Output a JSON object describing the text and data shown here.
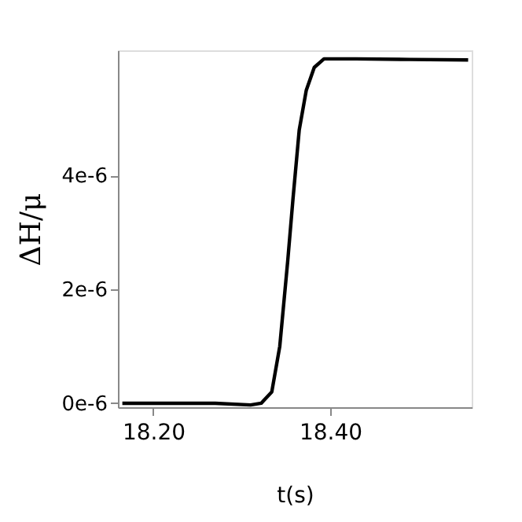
{
  "chart_data": {
    "type": "line",
    "xlabel": "t(s)",
    "ylabel": "ΔH/μ",
    "x": [
      18.165,
      18.22,
      18.27,
      18.31,
      18.322,
      18.334,
      18.343,
      18.352,
      18.358,
      18.365,
      18.373,
      18.382,
      18.393,
      18.429,
      18.49,
      18.556
    ],
    "series": [
      {
        "color": "#000000",
        "values": [
          0,
          0,
          0,
          -3e-08,
          0,
          2e-07,
          1e-06,
          2.5e-06,
          3.6e-06,
          4.8e-06,
          5.5e-06,
          5.9e-06,
          6.05e-06,
          6.05e-06,
          6.04e-06,
          6.03e-06
        ]
      }
    ],
    "xlim": [
      18.16,
      18.56
    ],
    "ylim": [
      -7e-08,
      6.2e-06
    ],
    "xticks": [
      {
        "value": 18.2,
        "label": "18.20"
      },
      {
        "value": 18.4,
        "label": "18.40"
      }
    ],
    "yticks": [
      {
        "value": 0,
        "label": "0e-6"
      },
      {
        "value": 2e-06,
        "label": "2e-6"
      },
      {
        "value": 4e-06,
        "label": "4e-6"
      }
    ],
    "grid": false,
    "marker": "none",
    "line_style": "solid"
  }
}
